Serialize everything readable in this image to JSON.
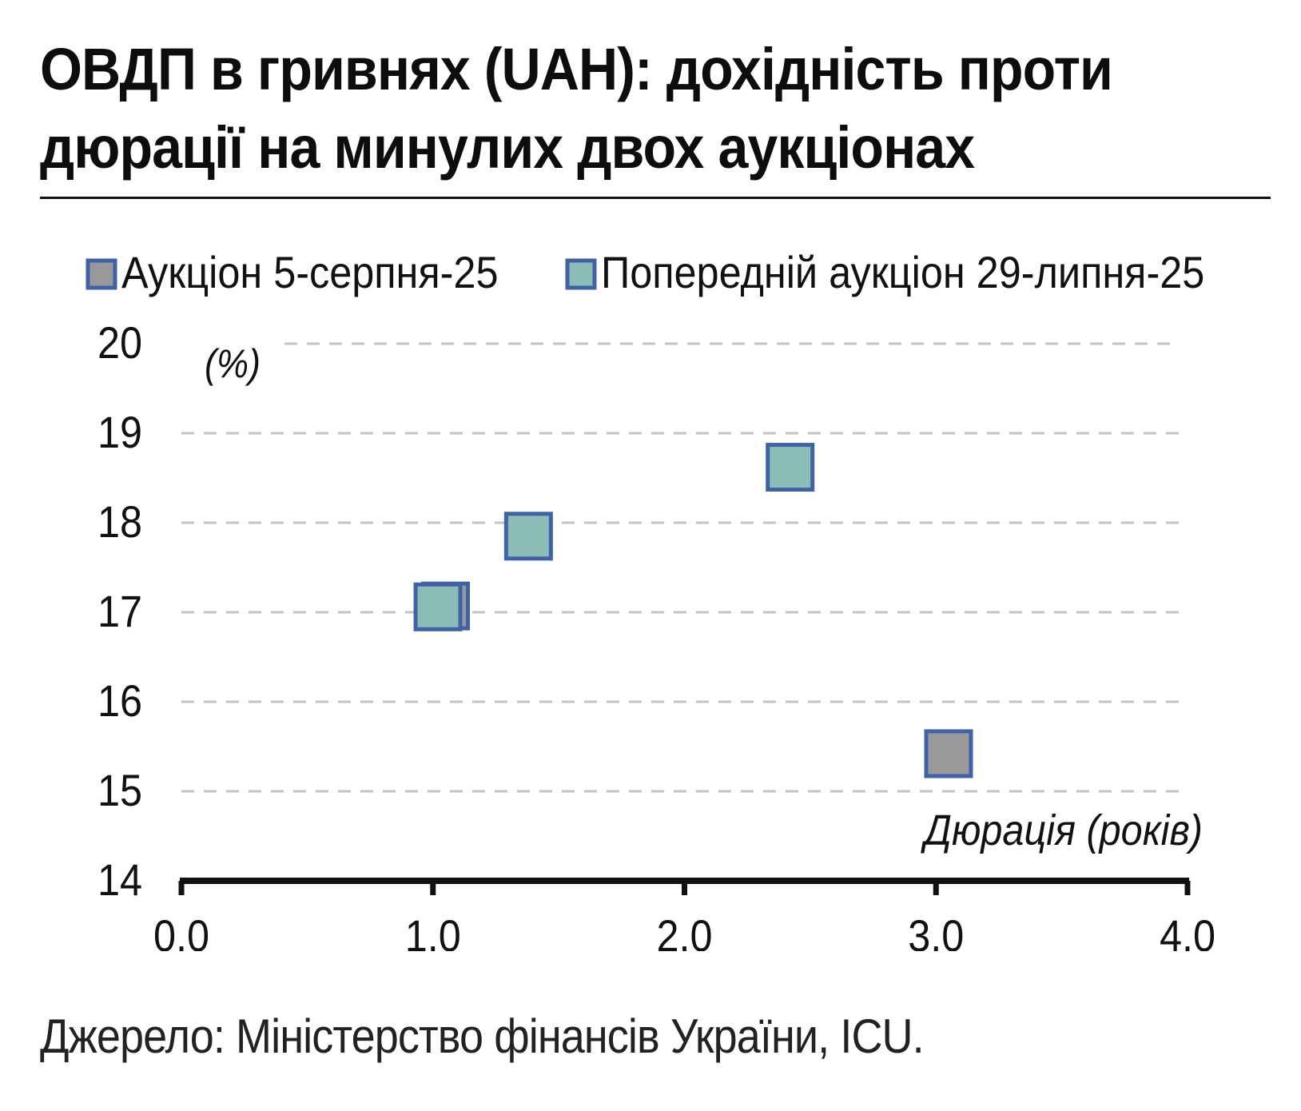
{
  "header": {
    "title_line1": "ОВДП в гривнях (UAH): дохідність проти",
    "title_line2": "дюрації на минулих двох аукціонах"
  },
  "footer": {
    "source": "Джерело: Міністерство фінансів України, ICU."
  },
  "chart_data": {
    "type": "scatter",
    "xlabel": "Дюрація (років)",
    "ylabel": "(%)",
    "xlim": [
      0.0,
      4.0
    ],
    "ylim": [
      14,
      20
    ],
    "x_ticks": [
      "0.0",
      "1.0",
      "2.0",
      "3.0",
      "4.0"
    ],
    "y_ticks": [
      "14",
      "15",
      "16",
      "17",
      "18",
      "19",
      "20"
    ],
    "grid": "horizontal dashed",
    "legend_position": "top",
    "series": [
      {
        "name": "Аукціон 5-серпня-25",
        "fill_color": "#999999",
        "border_color": "#3f62a7",
        "points": [
          {
            "x": 1.05,
            "y": 17.07
          },
          {
            "x": 3.05,
            "y": 15.42
          }
        ]
      },
      {
        "name": "Попередній аукціон 29-липня-25",
        "fill_color": "#8bbcb6",
        "border_color": "#3f62a7",
        "points": [
          {
            "x": 1.02,
            "y": 17.06
          },
          {
            "x": 1.38,
            "y": 17.85
          },
          {
            "x": 2.42,
            "y": 18.62
          }
        ]
      }
    ]
  }
}
